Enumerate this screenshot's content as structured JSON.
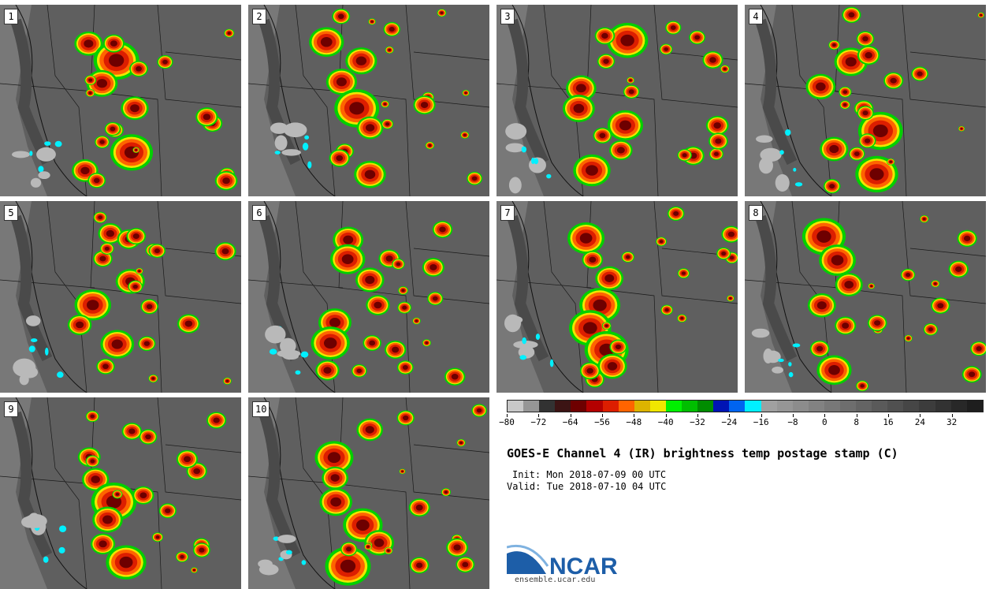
{
  "panels": [
    {
      "label": "1"
    },
    {
      "label": "2"
    },
    {
      "label": "3"
    },
    {
      "label": "4"
    },
    {
      "label": "5"
    },
    {
      "label": "6"
    },
    {
      "label": "7"
    },
    {
      "label": "8"
    },
    {
      "label": "9"
    },
    {
      "label": "10"
    }
  ],
  "colorbar": {
    "colors": [
      "#c8c8c8",
      "#969696",
      "#323232",
      "#3c1414",
      "#6e0000",
      "#b40000",
      "#dc1e00",
      "#ff6400",
      "#dcb400",
      "#f0e600",
      "#00f000",
      "#00be00",
      "#008c00",
      "#0014b4",
      "#0064f0",
      "#00f0ff",
      "#a0a0a0",
      "#969696",
      "#8c8c8c",
      "#828282",
      "#787878",
      "#6e6e6e",
      "#646464",
      "#5a5a5a",
      "#505050",
      "#464646",
      "#3c3c3c",
      "#323232",
      "#282828",
      "#1e1e1e"
    ],
    "tick_values": [
      "−80",
      "−72",
      "−64",
      "−56",
      "−48",
      "−40",
      "−32",
      "−24",
      "−16",
      "−8",
      "0",
      "8",
      "16",
      "24",
      "32"
    ]
  },
  "title": "GOES-E Channel 4 (IR) brightness temp postage stamp (C)",
  "init_text": "Init: Mon 2018-07-09 00 UTC",
  "valid_text": "Valid: Tue 2018-07-10 04 UTC",
  "logo": {
    "text": "NCAR",
    "url": "ensemble.ucar.edu",
    "color": "#1d5ea8"
  }
}
